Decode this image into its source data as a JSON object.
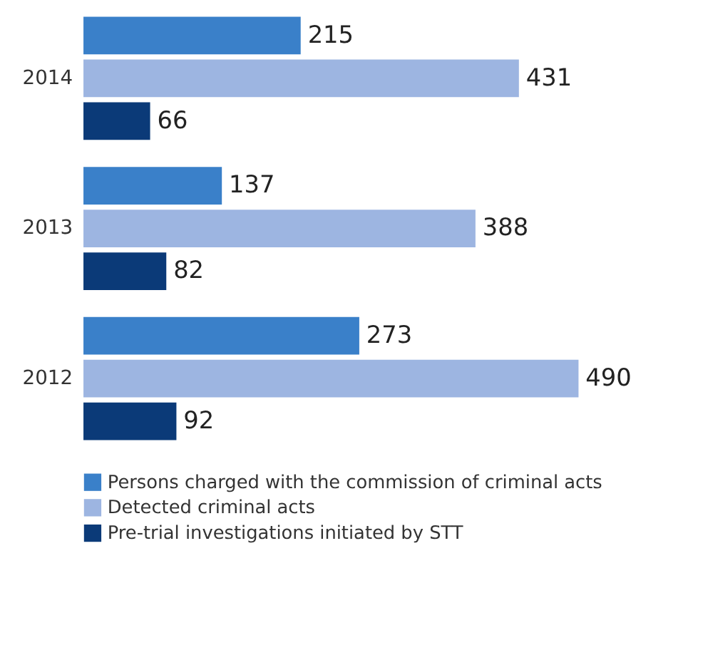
{
  "chart_data": {
    "type": "bar",
    "orientation": "horizontal",
    "categories": [
      "2014",
      "2013",
      "2012"
    ],
    "series": [
      {
        "name": "Persons charged with the commission of criminal acts",
        "color": "#3a80c9",
        "values": [
          215,
          137,
          273
        ]
      },
      {
        "name": "Detected criminal acts",
        "color": "#9db5e1",
        "values": [
          431,
          388,
          490
        ]
      },
      {
        "name": "Pre-trial investigations initiated by STT",
        "color": "#0b3a78",
        "values": [
          66,
          82,
          92
        ]
      }
    ],
    "data_labels": true,
    "legend": "bottom",
    "grid": false,
    "tick_labels": "y"
  }
}
